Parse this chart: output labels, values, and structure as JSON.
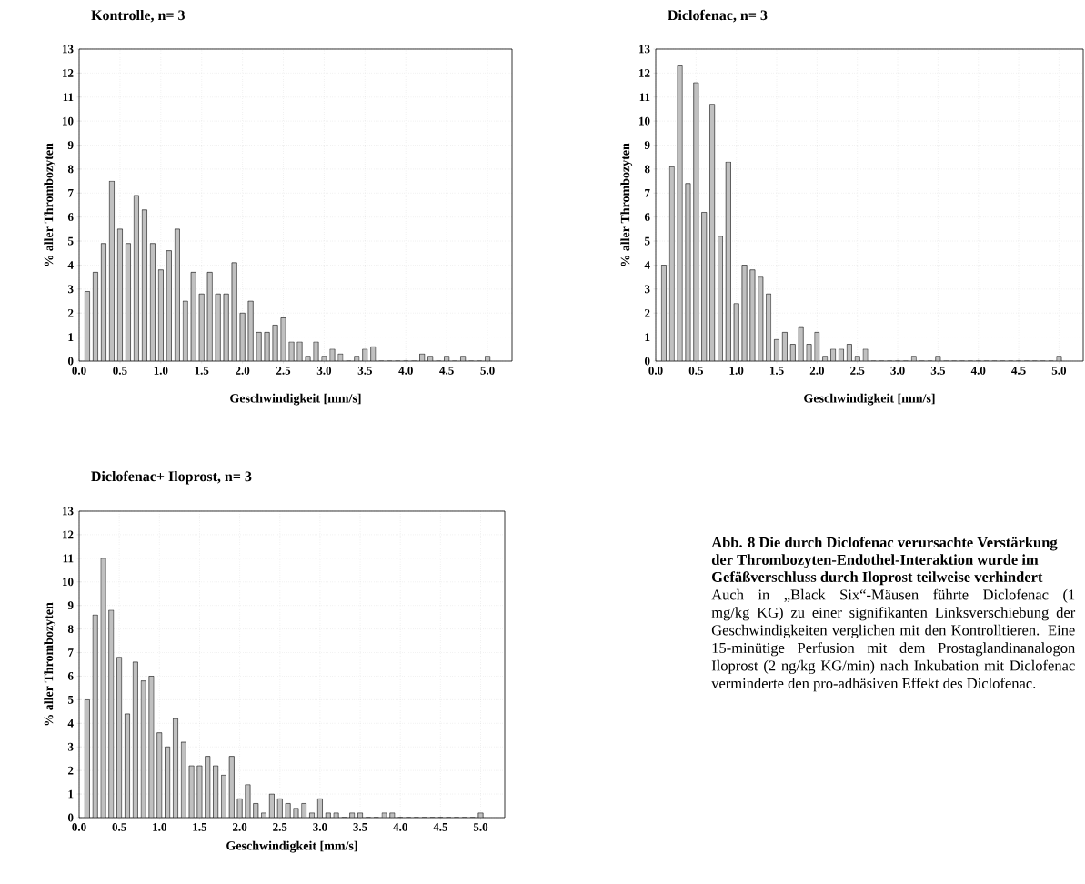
{
  "chart_data": [
    {
      "type": "histogram",
      "title": "Kontrolle, n= 3",
      "xlabel": "Geschwindigkeit [mm/s]",
      "ylabel": "% aller Thrombozyten",
      "color": "#c0c0c0",
      "grid": true,
      "bins": [
        0.05,
        0.15,
        0.25,
        0.35,
        0.45,
        0.55,
        0.65,
        0.75,
        0.85,
        0.95,
        1.05,
        1.15,
        1.25,
        1.35,
        1.45,
        1.55,
        1.65,
        1.75,
        1.85,
        1.95,
        2.05,
        2.15,
        2.25,
        2.35,
        2.45,
        2.55,
        2.65,
        2.75,
        2.85,
        2.95,
        3.05,
        3.15,
        3.25,
        3.35,
        3.45,
        3.55,
        3.65,
        3.75,
        3.85,
        3.95,
        4.05,
        4.15,
        4.25,
        4.35,
        4.45,
        4.55,
        4.65,
        4.75,
        4.85,
        4.95,
        5.05
      ],
      "values": [
        2.9,
        3.7,
        4.9,
        7.5,
        5.5,
        4.9,
        6.9,
        6.3,
        4.9,
        3.8,
        4.6,
        5.5,
        2.5,
        3.7,
        2.8,
        3.7,
        2.8,
        2.8,
        4.1,
        2.0,
        2.5,
        1.2,
        1.2,
        1.5,
        1.8,
        0.8,
        0.8,
        0.2,
        0.8,
        0.2,
        0.5,
        0.3,
        0,
        0.2,
        0.5,
        0.6,
        0,
        0,
        0,
        0,
        0,
        0.3,
        0.2,
        0,
        0.2,
        0,
        0.2,
        0,
        0,
        0.2
      ],
      "xlim": [
        0,
        5.3
      ],
      "ylim": [
        0,
        13
      ],
      "xticks": [
        {
          "value": 0,
          "label": "0.0"
        },
        {
          "value": 0.5,
          "label": "0.5"
        },
        {
          "value": 1,
          "label": "1.0"
        },
        {
          "value": 1.5,
          "label": "1.5"
        },
        {
          "value": 2,
          "label": "2.0"
        },
        {
          "value": 2.5,
          "label": "2.5"
        },
        {
          "value": 3,
          "label": "3.0"
        },
        {
          "value": 3.5,
          "label": "3.5"
        },
        {
          "value": 4,
          "label": "4.0"
        },
        {
          "value": 4.5,
          "label": "4.5"
        },
        {
          "value": 5,
          "label": "5.0"
        }
      ],
      "yticks": [
        0,
        1,
        2,
        3,
        4,
        5,
        6,
        7,
        8,
        9,
        10,
        11,
        12,
        13
      ]
    },
    {
      "type": "histogram",
      "title": "Diclofenac, n= 3",
      "xlabel": "Geschwindigkeit [mm/s]",
      "ylabel": "% aller Thrombozyten",
      "color": "#c0c0c0",
      "grid": true,
      "bins": [
        0.05,
        0.15,
        0.25,
        0.35,
        0.45,
        0.55,
        0.65,
        0.75,
        0.85,
        0.95,
        1.05,
        1.15,
        1.25,
        1.35,
        1.45,
        1.55,
        1.65,
        1.75,
        1.85,
        1.95,
        2.05,
        2.15,
        2.25,
        2.35,
        2.45,
        2.55,
        2.65,
        2.75,
        2.85,
        2.95,
        3.05,
        3.15,
        3.25,
        3.35,
        3.45,
        3.55,
        3.65,
        3.75,
        3.85,
        3.95,
        4.05,
        4.15,
        4.25,
        4.35,
        4.45,
        4.55,
        4.65,
        4.75,
        4.85,
        4.95,
        5.05
      ],
      "values": [
        4.0,
        8.1,
        12.3,
        7.4,
        11.6,
        6.2,
        10.7,
        5.2,
        8.3,
        2.4,
        4.0,
        3.8,
        3.5,
        2.8,
        0.9,
        1.2,
        0.7,
        1.4,
        0.7,
        1.2,
        0.2,
        0.5,
        0.5,
        0.7,
        0.2,
        0.5,
        0,
        0,
        0,
        0,
        0,
        0.2,
        0,
        0,
        0.2,
        0,
        0,
        0,
        0,
        0,
        0,
        0,
        0,
        0,
        0,
        0,
        0,
        0,
        0,
        0.2
      ],
      "xlim": [
        0,
        5.3
      ],
      "ylim": [
        0,
        13
      ],
      "xticks": [
        {
          "value": 0,
          "label": "0.0"
        },
        {
          "value": 0.5,
          "label": "0.5"
        },
        {
          "value": 1,
          "label": "1.0"
        },
        {
          "value": 1.5,
          "label": "1.5"
        },
        {
          "value": 2,
          "label": "2.0"
        },
        {
          "value": 2.5,
          "label": "2.5"
        },
        {
          "value": 3,
          "label": "3.0"
        },
        {
          "value": 3.5,
          "label": "3.5"
        },
        {
          "value": 4,
          "label": "4.0"
        },
        {
          "value": 4.5,
          "label": "4.5"
        },
        {
          "value": 5,
          "label": "5.0"
        }
      ],
      "yticks": [
        0,
        1,
        2,
        3,
        4,
        5,
        6,
        7,
        8,
        9,
        10,
        11,
        12,
        13
      ]
    },
    {
      "type": "histogram",
      "title": "Diclofenac+ Iloprost, n= 3",
      "xlabel": "Geschwindigkeit [mm/s]",
      "ylabel": "% aller Thrombozyten",
      "color": "#c0c0c0",
      "grid": true,
      "bins": [
        0.05,
        0.15,
        0.25,
        0.35,
        0.45,
        0.55,
        0.65,
        0.75,
        0.85,
        0.95,
        1.05,
        1.15,
        1.25,
        1.35,
        1.45,
        1.55,
        1.65,
        1.75,
        1.85,
        1.95,
        2.05,
        2.15,
        2.25,
        2.35,
        2.45,
        2.55,
        2.65,
        2.75,
        2.85,
        2.95,
        3.05,
        3.15,
        3.25,
        3.35,
        3.45,
        3.55,
        3.65,
        3.75,
        3.85,
        3.95,
        4.05,
        4.15,
        4.25,
        4.35,
        4.45,
        4.55,
        4.65,
        4.75,
        4.85,
        4.95,
        5.05
      ],
      "values": [
        5.0,
        8.6,
        11.0,
        8.8,
        6.8,
        4.4,
        6.6,
        5.8,
        6.0,
        3.6,
        3.0,
        4.2,
        3.2,
        2.2,
        2.2,
        2.6,
        2.2,
        1.8,
        2.6,
        0.8,
        1.4,
        0.6,
        0.2,
        1.0,
        0.8,
        0.6,
        0.4,
        0.6,
        0.2,
        0.8,
        0.2,
        0.2,
        0,
        0.2,
        0.2,
        0,
        0,
        0.2,
        0.2,
        0,
        0,
        0,
        0,
        0,
        0,
        0,
        0,
        0,
        0,
        0.2
      ],
      "xlim": [
        0,
        5.3
      ],
      "ylim": [
        0,
        13
      ],
      "xticks": [
        {
          "value": 0,
          "label": "0.0"
        },
        {
          "value": 0.5,
          "label": "0.5"
        },
        {
          "value": 1,
          "label": "1.0"
        },
        {
          "value": 1.5,
          "label": "1.5"
        },
        {
          "value": 2,
          "label": "2.0"
        },
        {
          "value": 2.5,
          "label": "2.5"
        },
        {
          "value": 3,
          "label": "3.0"
        },
        {
          "value": 3.5,
          "label": "3.5"
        },
        {
          "value": 4,
          "label": "4.0"
        },
        {
          "value": 4.5,
          "label": "4.5"
        },
        {
          "value": 5,
          "label": "5.0"
        }
      ],
      "yticks": [
        0,
        1,
        2,
        3,
        4,
        5,
        6,
        7,
        8,
        9,
        10,
        11,
        12,
        13
      ]
    },
    {
      "type": "other",
      "title": "Abb. 8 Die durch Diclofenac verursachte Verstärkung der Thrombozyten-Endothel-Interaktion wurde im Gefäßverschluss durch Iloprost teilweise verhindert",
      "annotations": [
        "Auch in „Black Six“-Mäusen führte Diclofenac (1 mg/kg KG) zu einer signifikanten Linksverschiebung der Geschwindigkeiten verglichen mit den Kontrolltieren. Eine 15-minütige Perfusion mit dem Prostaglandinanalogon Iloprost (2 ng/kg KG/min) nach Inkubation mit Diclofenac verminderte den pro-adhäsiven Effekt des Diclofenac."
      ]
    }
  ]
}
